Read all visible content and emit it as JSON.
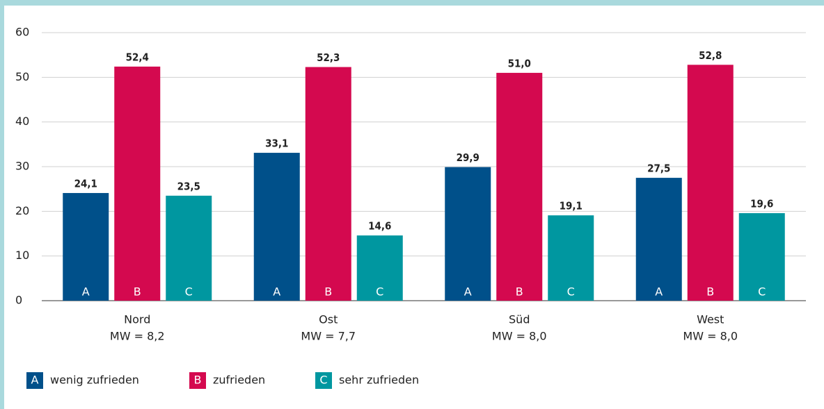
{
  "chart_data": {
    "type": "bar",
    "categories": [
      "Nord",
      "Ost",
      "Süd",
      "West"
    ],
    "category_sublabels": [
      "MW = 8,2",
      "MW = 7,7",
      "MW = 8,0",
      "MW = 8,0"
    ],
    "series": [
      {
        "name": "wenig zufrieden",
        "letter": "A",
        "color": "#00508a",
        "values": [
          24.1,
          33.1,
          29.9,
          27.5
        ],
        "value_labels": [
          "24,1",
          "33,1",
          "29,9",
          "27,5"
        ]
      },
      {
        "name": "zufrieden",
        "letter": "B",
        "color": "#d4094f",
        "values": [
          52.4,
          52.3,
          51.0,
          52.8
        ],
        "value_labels": [
          "52,4",
          "52,3",
          "51,0",
          "52,8"
        ]
      },
      {
        "name": "sehr zufrieden",
        "letter": "C",
        "color": "#0097a0",
        "values": [
          23.5,
          14.6,
          19.1,
          19.6
        ],
        "value_labels": [
          "23,5",
          "14,6",
          "19,1",
          "19,6"
        ]
      }
    ],
    "ylim": [
      0,
      60
    ],
    "yticks": [
      0,
      10,
      20,
      30,
      40,
      50,
      60
    ],
    "grid": true
  }
}
